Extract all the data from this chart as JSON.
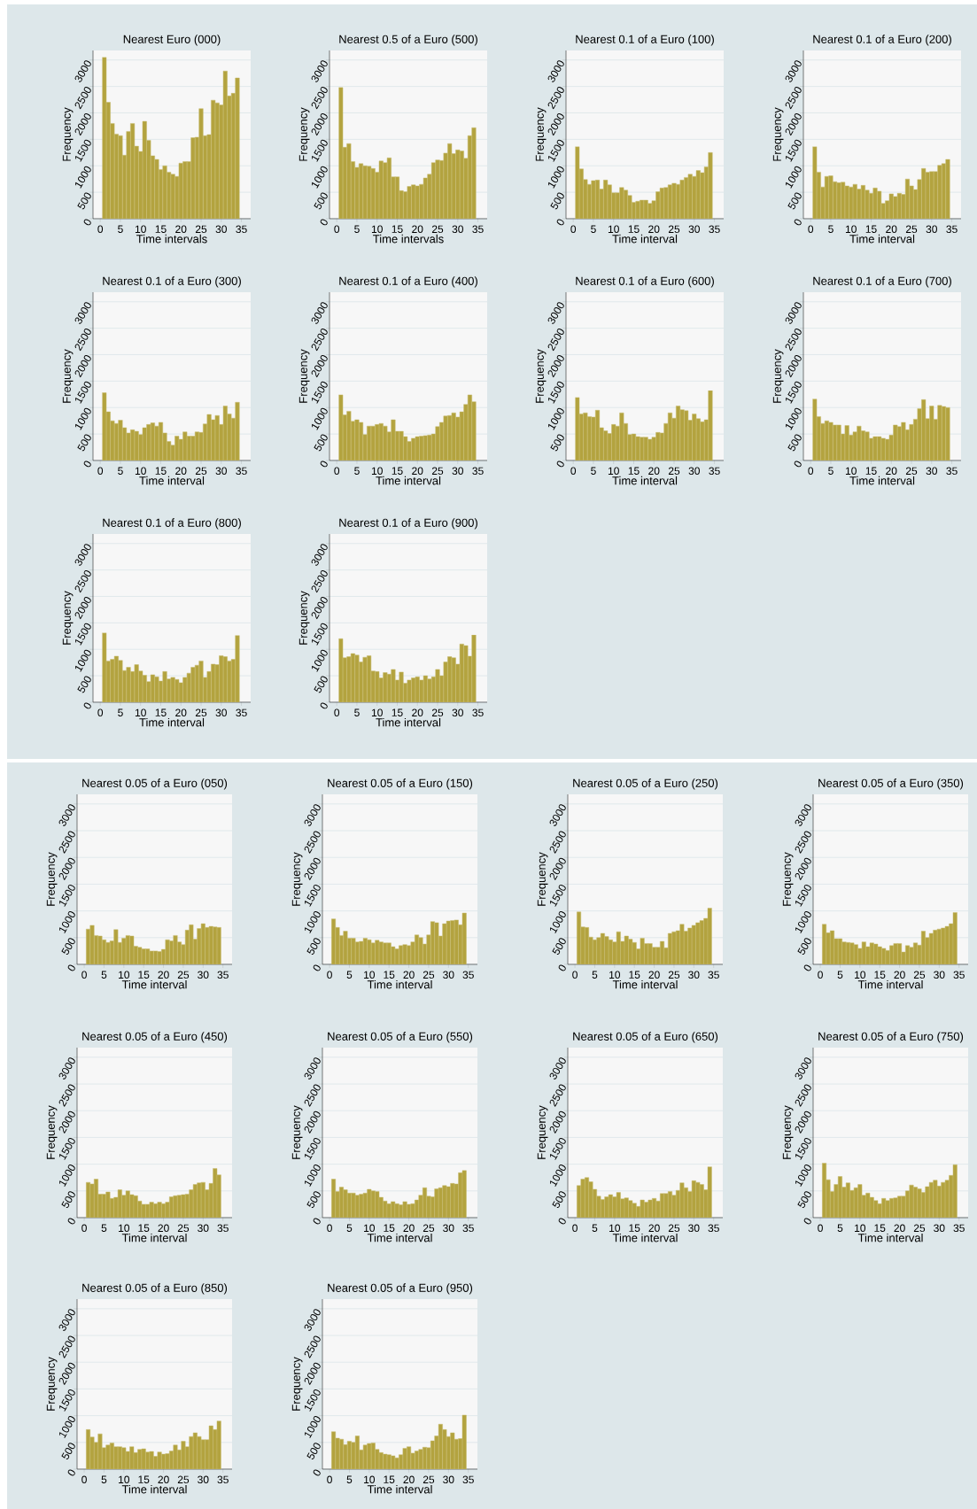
{
  "chart_data": [
    {
      "type": "histogram",
      "title": "Nearest Euro (000)",
      "xlabel": "Time intervals",
      "ylabel": "Frequency",
      "color": "#b3a33f",
      "grid": "y",
      "xlim": [
        -1.8,
        37.3
      ],
      "ylim": [
        0,
        3180
      ],
      "xticks": [
        0,
        5,
        10,
        15,
        20,
        25,
        30,
        35
      ],
      "yticks": [
        0,
        500,
        1000,
        1500,
        2000,
        2500,
        3000
      ],
      "bins": [
        0.5,
        1.5,
        2.5,
        3.5,
        4.5,
        5.5,
        6.5,
        7.5,
        8.5,
        9.5,
        10.5,
        11.5,
        12.5,
        13.5,
        14.5,
        15.5,
        16.5,
        17.5,
        18.5,
        19.5,
        20.5,
        21.5,
        22.5,
        23.5,
        24.5,
        25.5,
        26.5,
        27.5,
        28.5,
        29.5,
        30.5,
        31.5,
        32.5,
        33.5,
        34.5
      ],
      "values": [
        3050,
        2200,
        1800,
        1600,
        1570,
        1200,
        1650,
        1800,
        1370,
        1270,
        1840,
        1480,
        1190,
        1120,
        930,
        1000,
        880,
        840,
        800,
        1050,
        1080,
        1080,
        1530,
        1540,
        2080,
        1570,
        1590,
        2240,
        2190,
        2150,
        2790,
        2320,
        2370,
        2660
      ]
    },
    {
      "type": "histogram",
      "title": "Nearest 0.5 of a Euro (500)",
      "xlabel": "Time intervals",
      "ylabel": "Frequency",
      "color": "#b3a33f",
      "grid": "y",
      "xlim": [
        -1.8,
        37.3
      ],
      "ylim": [
        0,
        3180
      ],
      "xticks": [
        0,
        5,
        10,
        15,
        20,
        25,
        30,
        35
      ],
      "yticks": [
        0,
        500,
        1000,
        1500,
        2000,
        2500,
        3000
      ],
      "bins": [
        0.5,
        1.5,
        2.5,
        3.5,
        4.5,
        5.5,
        6.5,
        7.5,
        8.5,
        9.5,
        10.5,
        11.5,
        12.5,
        13.5,
        14.5,
        15.5,
        16.5,
        17.5,
        18.5,
        19.5,
        20.5,
        21.5,
        22.5,
        23.5,
        24.5,
        25.5,
        26.5,
        27.5,
        28.5,
        29.5,
        30.5,
        31.5,
        32.5,
        33.5,
        34.5
      ],
      "values": [
        2480,
        1350,
        1420,
        1080,
        970,
        1040,
        1000,
        990,
        950,
        880,
        1090,
        1060,
        1150,
        790,
        790,
        530,
        510,
        610,
        640,
        620,
        650,
        770,
        840,
        1060,
        1110,
        1100,
        1240,
        1420,
        1230,
        1300,
        1280,
        1140,
        1570,
        1720
      ]
    },
    {
      "type": "histogram",
      "title": "Nearest 0.1 of a Euro (100)",
      "xlabel": "Time interval",
      "ylabel": "Frequency",
      "color": "#b3a33f",
      "grid": "y",
      "xlim": [
        -1.8,
        37.3
      ],
      "ylim": [
        0,
        3180
      ],
      "xticks": [
        0,
        5,
        10,
        15,
        20,
        25,
        30,
        35
      ],
      "yticks": [
        0,
        500,
        1000,
        1500,
        2000,
        2500,
        3000
      ],
      "bins": [
        0.5,
        1.5,
        2.5,
        3.5,
        4.5,
        5.5,
        6.5,
        7.5,
        8.5,
        9.5,
        10.5,
        11.5,
        12.5,
        13.5,
        14.5,
        15.5,
        16.5,
        17.5,
        18.5,
        19.5,
        20.5,
        21.5,
        22.5,
        23.5,
        24.5,
        25.5,
        26.5,
        27.5,
        28.5,
        29.5,
        30.5,
        31.5,
        32.5,
        33.5,
        34.5
      ],
      "values": [
        1360,
        940,
        740,
        650,
        720,
        730,
        560,
        730,
        640,
        490,
        490,
        590,
        540,
        440,
        310,
        330,
        350,
        350,
        290,
        340,
        510,
        580,
        590,
        640,
        670,
        650,
        730,
        780,
        840,
        800,
        910,
        870,
        980,
        1250
      ]
    },
    {
      "type": "histogram",
      "title": "Nearest 0.1 of a Euro (200)",
      "xlabel": "Time interval",
      "ylabel": "Frequency",
      "color": "#b3a33f",
      "grid": "y",
      "xlim": [
        -1.8,
        37.3
      ],
      "ylim": [
        0,
        3180
      ],
      "xticks": [
        0,
        5,
        10,
        15,
        20,
        25,
        30,
        35
      ],
      "yticks": [
        0,
        500,
        1000,
        1500,
        2000,
        2500,
        3000
      ],
      "bins": [
        0.5,
        1.5,
        2.5,
        3.5,
        4.5,
        5.5,
        6.5,
        7.5,
        8.5,
        9.5,
        10.5,
        11.5,
        12.5,
        13.5,
        14.5,
        15.5,
        16.5,
        17.5,
        18.5,
        19.5,
        20.5,
        21.5,
        22.5,
        23.5,
        24.5,
        25.5,
        26.5,
        27.5,
        28.5,
        29.5,
        30.5,
        31.5,
        32.5,
        33.5,
        34.5
      ],
      "values": [
        1360,
        880,
        600,
        800,
        810,
        700,
        680,
        690,
        620,
        600,
        650,
        560,
        630,
        540,
        480,
        580,
        520,
        290,
        340,
        470,
        420,
        480,
        460,
        750,
        620,
        550,
        740,
        950,
        880,
        890,
        890,
        1010,
        1040,
        1120
      ]
    },
    {
      "type": "histogram",
      "title": "Nearest 0.1 of a Euro (300)",
      "xlabel": "Time interval",
      "ylabel": "Frequency",
      "color": "#b3a33f",
      "grid": "y",
      "xlim": [
        -1.8,
        37.3
      ],
      "ylim": [
        0,
        3180
      ],
      "xticks": [
        0,
        5,
        10,
        15,
        20,
        25,
        30,
        35
      ],
      "yticks": [
        0,
        500,
        1000,
        1500,
        2000,
        2500,
        3000
      ],
      "bins": [
        0.5,
        1.5,
        2.5,
        3.5,
        4.5,
        5.5,
        6.5,
        7.5,
        8.5,
        9.5,
        10.5,
        11.5,
        12.5,
        13.5,
        14.5,
        15.5,
        16.5,
        17.5,
        18.5,
        19.5,
        20.5,
        21.5,
        22.5,
        23.5,
        24.5,
        25.5,
        26.5,
        27.5,
        28.5,
        29.5,
        30.5,
        31.5,
        32.5,
        33.5,
        34.5
      ],
      "values": [
        1280,
        920,
        750,
        700,
        760,
        620,
        520,
        580,
        550,
        490,
        620,
        680,
        710,
        650,
        720,
        520,
        360,
        290,
        460,
        400,
        540,
        460,
        460,
        540,
        530,
        690,
        870,
        770,
        850,
        680,
        1030,
        880,
        800,
        1100
      ]
    },
    {
      "type": "histogram",
      "title": "Nearest 0.1 of a Euro (400)",
      "xlabel": "Time interval",
      "ylabel": "Frequency",
      "color": "#b3a33f",
      "grid": "y",
      "xlim": [
        -1.8,
        37.3
      ],
      "ylim": [
        0,
        3180
      ],
      "xticks": [
        0,
        5,
        10,
        15,
        20,
        25,
        30,
        35
      ],
      "yticks": [
        0,
        500,
        1000,
        1500,
        2000,
        2500,
        3000
      ],
      "bins": [
        0.5,
        1.5,
        2.5,
        3.5,
        4.5,
        5.5,
        6.5,
        7.5,
        8.5,
        9.5,
        10.5,
        11.5,
        12.5,
        13.5,
        14.5,
        15.5,
        16.5,
        17.5,
        18.5,
        19.5,
        20.5,
        21.5,
        22.5,
        23.5,
        24.5,
        25.5,
        26.5,
        27.5,
        28.5,
        29.5,
        30.5,
        31.5,
        32.5,
        33.5,
        34.5
      ],
      "values": [
        1240,
        860,
        930,
        740,
        770,
        720,
        490,
        650,
        650,
        680,
        700,
        650,
        540,
        770,
        550,
        550,
        450,
        360,
        420,
        450,
        460,
        470,
        480,
        500,
        640,
        720,
        840,
        850,
        900,
        820,
        920,
        1060,
        1240,
        1110
      ]
    },
    {
      "type": "histogram",
      "title": "Nearest 0.1 of a Euro (600)",
      "xlabel": "Time interval",
      "ylabel": "Frequency",
      "color": "#b3a33f",
      "grid": "y",
      "xlim": [
        -1.8,
        37.3
      ],
      "ylim": [
        0,
        3180
      ],
      "xticks": [
        0,
        5,
        10,
        15,
        20,
        25,
        30,
        35
      ],
      "yticks": [
        0,
        500,
        1000,
        1500,
        2000,
        2500,
        3000
      ],
      "bins": [
        0.5,
        1.5,
        2.5,
        3.5,
        4.5,
        5.5,
        6.5,
        7.5,
        8.5,
        9.5,
        10.5,
        11.5,
        12.5,
        13.5,
        14.5,
        15.5,
        16.5,
        17.5,
        18.5,
        19.5,
        20.5,
        21.5,
        22.5,
        23.5,
        24.5,
        25.5,
        26.5,
        27.5,
        28.5,
        29.5,
        30.5,
        31.5,
        32.5,
        33.5,
        34.5
      ],
      "values": [
        1190,
        880,
        900,
        830,
        820,
        950,
        620,
        560,
        510,
        680,
        650,
        900,
        700,
        490,
        500,
        450,
        440,
        440,
        400,
        440,
        530,
        520,
        700,
        900,
        800,
        1030,
        960,
        940,
        760,
        880,
        790,
        730,
        770,
        1320
      ]
    },
    {
      "type": "histogram",
      "title": "Nearest 0.1 of a Euro (700)",
      "xlabel": "Time interval",
      "ylabel": "Frequency",
      "color": "#b3a33f",
      "grid": "y",
      "xlim": [
        -1.8,
        37.3
      ],
      "ylim": [
        0,
        3180
      ],
      "xticks": [
        0,
        5,
        10,
        15,
        20,
        25,
        30,
        35
      ],
      "yticks": [
        0,
        500,
        1000,
        1500,
        2000,
        2500,
        3000
      ],
      "bins": [
        0.5,
        1.5,
        2.5,
        3.5,
        4.5,
        5.5,
        6.5,
        7.5,
        8.5,
        9.5,
        10.5,
        11.5,
        12.5,
        13.5,
        14.5,
        15.5,
        16.5,
        17.5,
        18.5,
        19.5,
        20.5,
        21.5,
        22.5,
        23.5,
        24.5,
        25.5,
        26.5,
        27.5,
        28.5,
        29.5,
        30.5,
        31.5,
        32.5,
        33.5,
        34.5
      ],
      "values": [
        1160,
        830,
        700,
        750,
        720,
        670,
        670,
        500,
        660,
        480,
        540,
        650,
        560,
        540,
        420,
        450,
        450,
        420,
        400,
        480,
        670,
        640,
        720,
        580,
        680,
        780,
        980,
        1150,
        790,
        1030,
        780,
        1040,
        1020,
        1000
      ]
    },
    {
      "type": "histogram",
      "title": "Nearest 0.1 of a Euro (800)",
      "xlabel": "Time interval",
      "ylabel": "Frequency",
      "color": "#b3a33f",
      "grid": "y",
      "xlim": [
        -1.8,
        37.3
      ],
      "ylim": [
        0,
        3180
      ],
      "xticks": [
        0,
        5,
        10,
        15,
        20,
        25,
        30,
        35
      ],
      "yticks": [
        0,
        500,
        1000,
        1500,
        2000,
        2500,
        3000
      ],
      "bins": [
        0.5,
        1.5,
        2.5,
        3.5,
        4.5,
        5.5,
        6.5,
        7.5,
        8.5,
        9.5,
        10.5,
        11.5,
        12.5,
        13.5,
        14.5,
        15.5,
        16.5,
        17.5,
        18.5,
        19.5,
        20.5,
        21.5,
        22.5,
        23.5,
        24.5,
        25.5,
        26.5,
        27.5,
        28.5,
        29.5,
        30.5,
        31.5,
        32.5,
        33.5,
        34.5
      ],
      "values": [
        1310,
        780,
        810,
        870,
        790,
        600,
        660,
        580,
        710,
        590,
        510,
        390,
        520,
        480,
        400,
        580,
        440,
        470,
        430,
        370,
        470,
        550,
        660,
        700,
        780,
        470,
        580,
        720,
        710,
        880,
        860,
        780,
        810,
        1260
      ]
    },
    {
      "type": "histogram",
      "title": "Nearest 0.1 of a Euro (900)",
      "xlabel": "Time interval",
      "ylabel": "Frequency",
      "color": "#b3a33f",
      "grid": "y",
      "xlim": [
        -1.8,
        37.3
      ],
      "ylim": [
        0,
        3180
      ],
      "xticks": [
        0,
        5,
        10,
        15,
        20,
        25,
        30,
        35
      ],
      "yticks": [
        0,
        500,
        1000,
        1500,
        2000,
        2500,
        3000
      ],
      "bins": [
        0.5,
        1.5,
        2.5,
        3.5,
        4.5,
        5.5,
        6.5,
        7.5,
        8.5,
        9.5,
        10.5,
        11.5,
        12.5,
        13.5,
        14.5,
        15.5,
        16.5,
        17.5,
        18.5,
        19.5,
        20.5,
        21.5,
        22.5,
        23.5,
        24.5,
        25.5,
        26.5,
        27.5,
        28.5,
        29.5,
        30.5,
        31.5,
        32.5,
        33.5,
        34.5
      ],
      "values": [
        1200,
        840,
        860,
        920,
        890,
        760,
        850,
        880,
        590,
        580,
        460,
        560,
        530,
        620,
        420,
        570,
        360,
        420,
        460,
        480,
        420,
        500,
        440,
        480,
        620,
        500,
        760,
        860,
        840,
        720,
        1100,
        1070,
        870,
        1270
      ]
    },
    {
      "type": "histogram",
      "title": "Nearest 0.05 of a Euro (050)",
      "xlabel": "Time interval",
      "ylabel": "Frequency",
      "color": "#b3a33f",
      "grid": "y",
      "xlim": [
        -1.8,
        37.3
      ],
      "ylim": [
        0,
        3180
      ],
      "xticks": [
        0,
        5,
        10,
        15,
        20,
        25,
        30,
        35
      ],
      "yticks": [
        0,
        500,
        1000,
        1500,
        2000,
        2500,
        3000
      ],
      "bins": [
        0.5,
        1.5,
        2.5,
        3.5,
        4.5,
        5.5,
        6.5,
        7.5,
        8.5,
        9.5,
        10.5,
        11.5,
        12.5,
        13.5,
        14.5,
        15.5,
        16.5,
        17.5,
        18.5,
        19.5,
        20.5,
        21.5,
        22.5,
        23.5,
        24.5,
        25.5,
        26.5,
        27.5,
        28.5,
        29.5,
        30.5,
        31.5,
        32.5,
        33.5,
        34.5
      ],
      "values": [
        660,
        730,
        540,
        530,
        460,
        410,
        440,
        650,
        410,
        490,
        540,
        530,
        340,
        320,
        290,
        290,
        250,
        250,
        240,
        280,
        460,
        440,
        540,
        420,
        370,
        640,
        740,
        470,
        670,
        760,
        690,
        710,
        700,
        690
      ]
    },
    {
      "type": "histogram",
      "title": "Nearest 0.05 of a Euro (150)",
      "xlabel": "Time interval",
      "ylabel": "Frequency",
      "color": "#b3a33f",
      "grid": "y",
      "xlim": [
        -1.8,
        37.3
      ],
      "ylim": [
        0,
        3180
      ],
      "xticks": [
        0,
        5,
        10,
        15,
        20,
        25,
        30,
        35
      ],
      "yticks": [
        0,
        500,
        1000,
        1500,
        2000,
        2500,
        3000
      ],
      "bins": [
        0.5,
        1.5,
        2.5,
        3.5,
        4.5,
        5.5,
        6.5,
        7.5,
        8.5,
        9.5,
        10.5,
        11.5,
        12.5,
        13.5,
        14.5,
        15.5,
        16.5,
        17.5,
        18.5,
        19.5,
        20.5,
        21.5,
        22.5,
        23.5,
        24.5,
        25.5,
        26.5,
        27.5,
        28.5,
        29.5,
        30.5,
        31.5,
        32.5,
        33.5,
        34.5
      ],
      "values": [
        850,
        690,
        540,
        620,
        490,
        490,
        420,
        430,
        490,
        460,
        400,
        450,
        420,
        400,
        400,
        330,
        290,
        350,
        370,
        350,
        420,
        550,
        500,
        380,
        550,
        800,
        780,
        530,
        760,
        810,
        820,
        830,
        740,
        960
      ]
    },
    {
      "type": "histogram",
      "title": "Nearest 0.05 of a Euro (250)",
      "xlabel": "Time interval",
      "ylabel": "Frequency",
      "color": "#b3a33f",
      "grid": "y",
      "xlim": [
        -1.8,
        37.3
      ],
      "ylim": [
        0,
        3180
      ],
      "xticks": [
        0,
        5,
        10,
        15,
        20,
        25,
        30,
        35
      ],
      "yticks": [
        0,
        500,
        1000,
        1500,
        2000,
        2500,
        3000
      ],
      "bins": [
        0.5,
        1.5,
        2.5,
        3.5,
        4.5,
        5.5,
        6.5,
        7.5,
        8.5,
        9.5,
        10.5,
        11.5,
        12.5,
        13.5,
        14.5,
        15.5,
        16.5,
        17.5,
        18.5,
        19.5,
        20.5,
        21.5,
        22.5,
        23.5,
        24.5,
        25.5,
        26.5,
        27.5,
        28.5,
        29.5,
        30.5,
        31.5,
        32.5,
        33.5,
        34.5
      ],
      "values": [
        980,
        700,
        690,
        510,
        460,
        500,
        580,
        520,
        460,
        420,
        610,
        430,
        530,
        470,
        410,
        290,
        490,
        390,
        390,
        320,
        320,
        430,
        310,
        580,
        610,
        630,
        750,
        620,
        680,
        730,
        780,
        820,
        860,
        1050
      ]
    },
    {
      "type": "histogram",
      "title": "Nearest 0.05 of a Euro (350)",
      "xlabel": "Time interval",
      "ylabel": "Frequency",
      "color": "#b3a33f",
      "grid": "y",
      "xlim": [
        -1.8,
        37.3
      ],
      "ylim": [
        0,
        3180
      ],
      "xticks": [
        0,
        5,
        10,
        15,
        20,
        25,
        30,
        35
      ],
      "yticks": [
        0,
        500,
        1000,
        1500,
        2000,
        2500,
        3000
      ],
      "bins": [
        0.5,
        1.5,
        2.5,
        3.5,
        4.5,
        5.5,
        6.5,
        7.5,
        8.5,
        9.5,
        10.5,
        11.5,
        12.5,
        13.5,
        14.5,
        15.5,
        16.5,
        17.5,
        18.5,
        19.5,
        20.5,
        21.5,
        22.5,
        23.5,
        24.5,
        25.5,
        26.5,
        27.5,
        28.5,
        29.5,
        30.5,
        31.5,
        32.5,
        33.5,
        34.5
      ],
      "values": [
        750,
        590,
        630,
        480,
        480,
        420,
        410,
        400,
        370,
        300,
        420,
        330,
        400,
        380,
        330,
        300,
        260,
        350,
        390,
        390,
        230,
        350,
        320,
        400,
        360,
        620,
        500,
        580,
        640,
        660,
        680,
        710,
        760,
        970
      ]
    },
    {
      "type": "histogram",
      "title": "Nearest 0.05 of a Euro (450)",
      "xlabel": "Time interval",
      "ylabel": "Frequency",
      "color": "#b3a33f",
      "grid": "y",
      "xlim": [
        -1.8,
        37.3
      ],
      "ylim": [
        0,
        3180
      ],
      "xticks": [
        0,
        5,
        10,
        15,
        20,
        25,
        30,
        35
      ],
      "yticks": [
        0,
        500,
        1000,
        1500,
        2000,
        2500,
        3000
      ],
      "bins": [
        0.5,
        1.5,
        2.5,
        3.5,
        4.5,
        5.5,
        6.5,
        7.5,
        8.5,
        9.5,
        10.5,
        11.5,
        12.5,
        13.5,
        14.5,
        15.5,
        16.5,
        17.5,
        18.5,
        19.5,
        20.5,
        21.5,
        22.5,
        23.5,
        24.5,
        25.5,
        26.5,
        27.5,
        28.5,
        29.5,
        30.5,
        31.5,
        32.5,
        33.5,
        34.5
      ],
      "values": [
        660,
        630,
        720,
        440,
        440,
        480,
        360,
        380,
        520,
        420,
        500,
        430,
        410,
        310,
        250,
        250,
        290,
        260,
        290,
        260,
        290,
        390,
        410,
        420,
        430,
        440,
        520,
        620,
        650,
        660,
        520,
        640,
        920,
        800
      ]
    },
    {
      "type": "histogram",
      "title": "Nearest 0.05 of a Euro (550)",
      "xlabel": "Time interval",
      "ylabel": "Frequency",
      "color": "#b3a33f",
      "grid": "y",
      "xlim": [
        -1.8,
        37.3
      ],
      "ylim": [
        0,
        3180
      ],
      "xticks": [
        0,
        5,
        10,
        15,
        20,
        25,
        30,
        35
      ],
      "yticks": [
        0,
        500,
        1000,
        1500,
        2000,
        2500,
        3000
      ],
      "bins": [
        0.5,
        1.5,
        2.5,
        3.5,
        4.5,
        5.5,
        6.5,
        7.5,
        8.5,
        9.5,
        10.5,
        11.5,
        12.5,
        13.5,
        14.5,
        15.5,
        16.5,
        17.5,
        18.5,
        19.5,
        20.5,
        21.5,
        22.5,
        23.5,
        24.5,
        25.5,
        26.5,
        27.5,
        28.5,
        29.5,
        30.5,
        31.5,
        32.5,
        33.5,
        34.5
      ],
      "values": [
        720,
        490,
        570,
        520,
        460,
        460,
        420,
        440,
        460,
        530,
        500,
        490,
        380,
        310,
        260,
        300,
        260,
        240,
        300,
        250,
        260,
        330,
        420,
        560,
        400,
        390,
        540,
        560,
        600,
        580,
        640,
        630,
        840,
        880
      ]
    },
    {
      "type": "histogram",
      "title": "Nearest 0.05 of a Euro (650)",
      "xlabel": "Time interval",
      "ylabel": "Frequency",
      "color": "#b3a33f",
      "grid": "y",
      "xlim": [
        -1.8,
        37.3
      ],
      "ylim": [
        0,
        3180
      ],
      "xticks": [
        0,
        5,
        10,
        15,
        20,
        25,
        30,
        35
      ],
      "yticks": [
        0,
        500,
        1000,
        1500,
        2000,
        2500,
        3000
      ],
      "bins": [
        0.5,
        1.5,
        2.5,
        3.5,
        4.5,
        5.5,
        6.5,
        7.5,
        8.5,
        9.5,
        10.5,
        11.5,
        12.5,
        13.5,
        14.5,
        15.5,
        16.5,
        17.5,
        18.5,
        19.5,
        20.5,
        21.5,
        22.5,
        23.5,
        24.5,
        25.5,
        26.5,
        27.5,
        28.5,
        29.5,
        30.5,
        31.5,
        32.5,
        33.5,
        34.5
      ],
      "values": [
        600,
        720,
        750,
        670,
        530,
        400,
        340,
        390,
        430,
        390,
        470,
        350,
        370,
        320,
        270,
        210,
        330,
        290,
        330,
        360,
        310,
        450,
        450,
        490,
        420,
        510,
        650,
        560,
        490,
        690,
        660,
        620,
        520,
        950
      ]
    },
    {
      "type": "histogram",
      "title": "Nearest 0.05 of a Euro (750)",
      "xlabel": "Time interval",
      "ylabel": "Frequency",
      "color": "#b3a33f",
      "grid": "y",
      "xlim": [
        -1.8,
        37.3
      ],
      "ylim": [
        0,
        3180
      ],
      "xticks": [
        0,
        5,
        10,
        15,
        20,
        25,
        30,
        35
      ],
      "yticks": [
        0,
        500,
        1000,
        1500,
        2000,
        2500,
        3000
      ],
      "bins": [
        0.5,
        1.5,
        2.5,
        3.5,
        4.5,
        5.5,
        6.5,
        7.5,
        8.5,
        9.5,
        10.5,
        11.5,
        12.5,
        13.5,
        14.5,
        15.5,
        16.5,
        17.5,
        18.5,
        19.5,
        20.5,
        21.5,
        22.5,
        23.5,
        24.5,
        25.5,
        26.5,
        27.5,
        28.5,
        29.5,
        30.5,
        31.5,
        32.5,
        33.5,
        34.5
      ],
      "values": [
        1020,
        710,
        490,
        620,
        770,
        570,
        650,
        510,
        560,
        620,
        420,
        460,
        380,
        320,
        260,
        360,
        320,
        360,
        370,
        400,
        400,
        500,
        610,
        570,
        540,
        470,
        580,
        660,
        700,
        590,
        660,
        700,
        790,
        990
      ]
    },
    {
      "type": "histogram",
      "title": "Nearest 0.05 of a Euro (850)",
      "xlabel": "Time interval",
      "ylabel": "Frequency",
      "color": "#b3a33f",
      "grid": "y",
      "xlim": [
        -1.8,
        37.3
      ],
      "ylim": [
        0,
        3180
      ],
      "xticks": [
        0,
        5,
        10,
        15,
        20,
        25,
        30,
        35
      ],
      "yticks": [
        0,
        500,
        1000,
        1500,
        2000,
        2500,
        3000
      ],
      "bins": [
        0.5,
        1.5,
        2.5,
        3.5,
        4.5,
        5.5,
        6.5,
        7.5,
        8.5,
        9.5,
        10.5,
        11.5,
        12.5,
        13.5,
        14.5,
        15.5,
        16.5,
        17.5,
        18.5,
        19.5,
        20.5,
        21.5,
        22.5,
        23.5,
        24.5,
        25.5,
        26.5,
        27.5,
        28.5,
        29.5,
        30.5,
        31.5,
        32.5,
        33.5,
        34.5
      ],
      "values": [
        740,
        600,
        500,
        660,
        400,
        450,
        490,
        420,
        420,
        400,
        330,
        420,
        310,
        370,
        380,
        320,
        330,
        240,
        320,
        280,
        290,
        340,
        450,
        360,
        520,
        420,
        610,
        680,
        610,
        550,
        550,
        810,
        740,
        900
      ]
    },
    {
      "type": "histogram",
      "title": "Nearest 0.05 of a Euro (950)",
      "xlabel": "Time interval",
      "ylabel": "Frequency",
      "color": "#b3a33f",
      "grid": "y",
      "xlim": [
        -1.8,
        37.3
      ],
      "ylim": [
        0,
        3180
      ],
      "xticks": [
        0,
        5,
        10,
        15,
        20,
        25,
        30,
        35
      ],
      "yticks": [
        0,
        500,
        1000,
        1500,
        2000,
        2500,
        3000
      ],
      "bins": [
        0.5,
        1.5,
        2.5,
        3.5,
        4.5,
        5.5,
        6.5,
        7.5,
        8.5,
        9.5,
        10.5,
        11.5,
        12.5,
        13.5,
        14.5,
        15.5,
        16.5,
        17.5,
        18.5,
        19.5,
        20.5,
        21.5,
        22.5,
        23.5,
        24.5,
        25.5,
        26.5,
        27.5,
        28.5,
        29.5,
        30.5,
        31.5,
        32.5,
        33.5,
        34.5
      ],
      "values": [
        700,
        580,
        560,
        460,
        520,
        500,
        620,
        360,
        450,
        480,
        490,
        370,
        310,
        280,
        270,
        250,
        210,
        270,
        390,
        420,
        300,
        340,
        370,
        410,
        400,
        530,
        620,
        840,
        740,
        610,
        680,
        560,
        570,
        1010
      ]
    }
  ]
}
